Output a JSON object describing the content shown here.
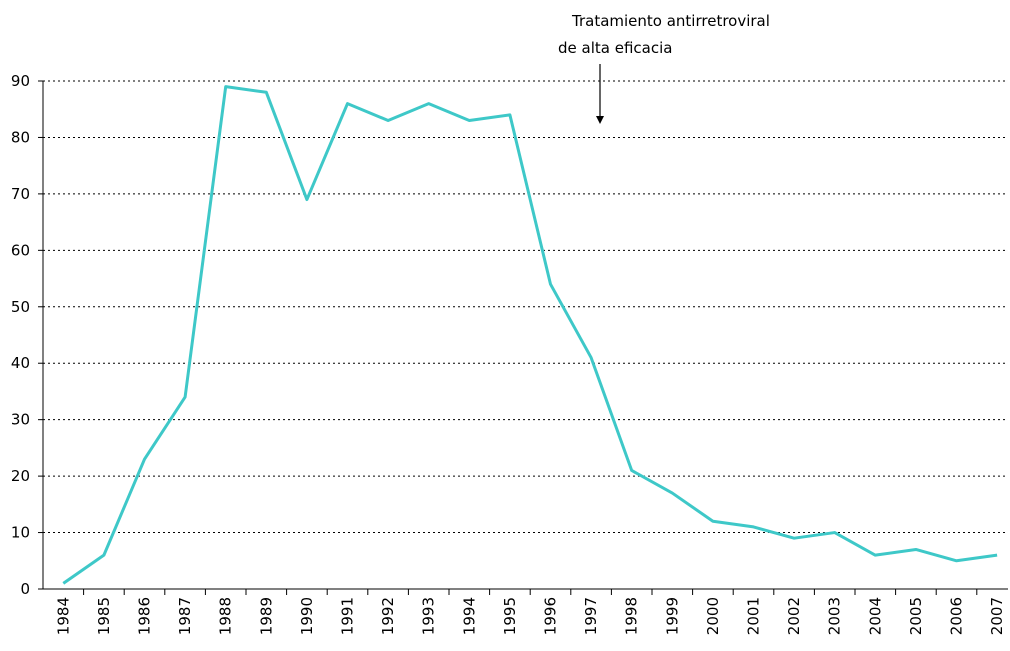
{
  "chart_data": {
    "type": "line",
    "annotation": [
      "Tratamiento antirretroviral",
      "de alta eficacia"
    ],
    "categories": [
      "1984",
      "1985",
      "1986",
      "1987",
      "1988",
      "1989",
      "1990",
      "1991",
      "1992",
      "1993",
      "1994",
      "1995",
      "1996",
      "1997",
      "1998",
      "1999",
      "2000",
      "2001",
      "2002",
      "2003",
      "2004",
      "2005",
      "2006",
      "2007"
    ],
    "series": [
      {
        "color": "#3ec8c8",
        "values": [
          1,
          6,
          23,
          34,
          89,
          88,
          69,
          86,
          83,
          86,
          83,
          84,
          54,
          41,
          21,
          17,
          12,
          11,
          9,
          10,
          6,
          7,
          5,
          6
        ]
      }
    ],
    "ylim": [
      0,
      90
    ],
    "yticks": [
      0,
      10,
      20,
      30,
      40,
      50,
      60,
      70,
      80,
      90
    ],
    "grid": true
  }
}
